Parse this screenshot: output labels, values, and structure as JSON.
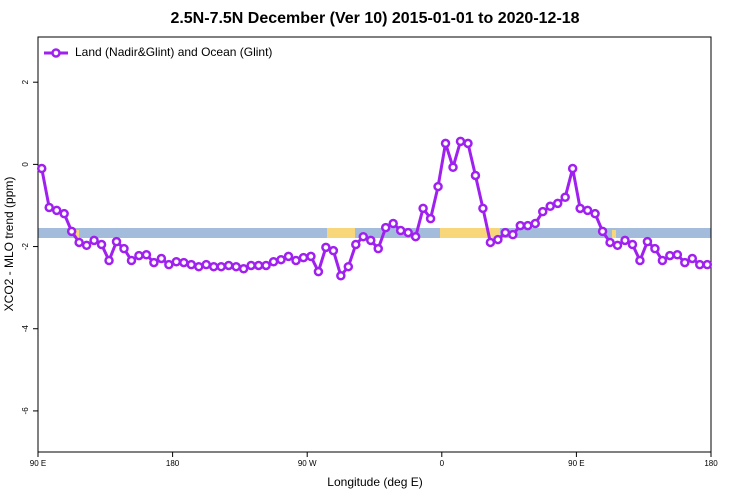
{
  "chart_data": {
    "type": "line",
    "title": "2.5N-7.5N December (Ver 10)   2015-01-01 to 2020-12-18",
    "xlabel": "Longitude (deg E)",
    "ylabel": "XCO2 - MLO trend (ppm)",
    "legend": "top-left",
    "x": [
      92.5,
      97.5,
      102.5,
      107.5,
      112.5,
      117.5,
      122.5,
      127.5,
      132.5,
      137.5,
      142.5,
      147.5,
      152.5,
      157.5,
      162.5,
      167.5,
      172.5,
      177.5,
      182.5,
      187.5,
      192.5,
      197.5,
      202.5,
      207.5,
      212.5,
      217.5,
      222.5,
      227.5,
      232.5,
      237.5,
      242.5,
      247.5,
      252.5,
      257.5,
      262.5,
      267.5,
      272.5,
      277.5,
      282.5,
      287.5,
      292.5,
      297.5,
      302.5,
      307.5,
      312.5,
      317.5,
      322.5,
      327.5,
      332.5,
      337.5,
      342.5,
      347.5,
      352.5,
      357.5,
      362.5,
      367.5,
      372.5,
      377.5,
      382.5,
      387.5,
      392.5,
      397.5,
      402.5,
      407.5,
      412.5,
      417.5,
      422.5,
      427.5,
      432.5,
      437.5,
      442.5,
      447.5,
      452.5,
      457.5,
      462.5,
      467.5,
      472.5,
      477.5,
      482.5,
      487.5,
      492.5,
      497.5,
      502.5,
      507.5,
      512.5,
      517.5,
      522.5,
      527.5,
      532.5,
      537.5
    ],
    "series": [
      {
        "name": "Land (Nadir&Glint) and Ocean (Glint)",
        "color": "#a020f0",
        "values": [
          -0.1,
          -1.05,
          -1.12,
          -1.2,
          -1.63,
          -1.9,
          -1.97,
          -1.85,
          -1.95,
          -2.34,
          -1.88,
          -2.05,
          -2.34,
          -2.22,
          -2.2,
          -2.39,
          -2.29,
          -2.44,
          -2.37,
          -2.39,
          -2.44,
          -2.49,
          -2.44,
          -2.49,
          -2.49,
          -2.46,
          -2.49,
          -2.54,
          -2.46,
          -2.46,
          -2.46,
          -2.37,
          -2.32,
          -2.24,
          -2.34,
          -2.27,
          -2.24,
          -2.61,
          -2.02,
          -2.1,
          -2.71,
          -2.49,
          -1.95,
          -1.76,
          -1.85,
          -2.05,
          -1.54,
          -1.44,
          -1.61,
          -1.66,
          -1.76,
          -1.07,
          -1.32,
          -0.54,
          0.51,
          -0.07,
          0.56,
          0.51,
          -0.27,
          -1.07,
          -1.9,
          -1.83,
          -1.66,
          -1.71,
          -1.49,
          -1.49,
          -1.44,
          -1.15,
          -1.02,
          -0.95,
          -0.8,
          -0.1,
          -1.07,
          -1.12,
          -1.2,
          -1.63,
          -1.9,
          -1.97,
          -1.85,
          -1.95,
          -2.34,
          -1.88,
          -2.05,
          -2.34,
          -2.22,
          -2.2,
          -2.39,
          -2.29,
          -2.44,
          -2.44
        ]
      }
    ],
    "xlim": [
      90,
      540
    ],
    "xticks": [
      {
        "value": 90,
        "label": "90 E"
      },
      180,
      {
        "value": 270,
        "label": "90 W"
      },
      {
        "value": 360,
        "label": "0"
      },
      {
        "value": 450,
        "label": "90 E"
      },
      {
        "value": 540,
        "label": "180"
      }
    ],
    "ylim": [
      -7,
      3.1
    ],
    "yticks": [
      2,
      0,
      -2,
      -4,
      -6
    ]
  }
}
